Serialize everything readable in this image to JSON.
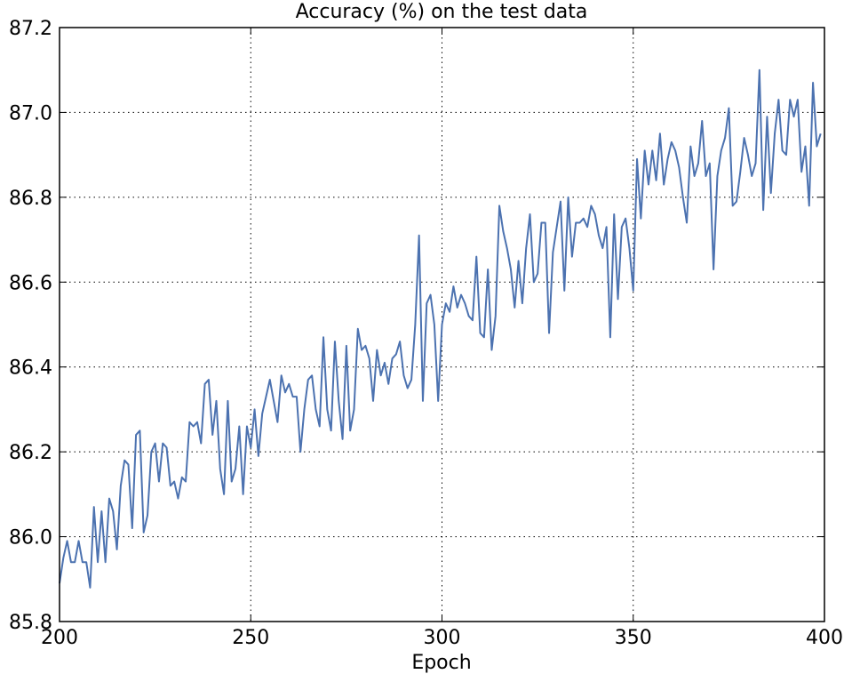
{
  "chart_data": {
    "type": "line",
    "title": "Accuracy (%) on the test data",
    "xlabel": "Epoch",
    "xlim": [
      200,
      400
    ],
    "xticks": [
      200,
      250,
      300,
      350,
      400
    ],
    "ylim": [
      85.8,
      87.2
    ],
    "yticks": [
      85.8,
      {
        "value": 86.0,
        "label": "86.0"
      },
      86.2,
      86.4,
      86.6,
      86.8,
      {
        "value": 87.0,
        "label": "87.0"
      },
      87.2
    ],
    "grid": true,
    "series": [
      {
        "name": "Accuracy",
        "color": "#4c72b0",
        "x": [
          200,
          201,
          202,
          203,
          204,
          205,
          206,
          207,
          208,
          209,
          210,
          211,
          212,
          213,
          214,
          215,
          216,
          217,
          218,
          219,
          220,
          221,
          222,
          223,
          224,
          225,
          226,
          227,
          228,
          229,
          230,
          231,
          232,
          233,
          234,
          235,
          236,
          237,
          238,
          239,
          240,
          241,
          242,
          243,
          244,
          245,
          246,
          247,
          248,
          249,
          250,
          251,
          252,
          253,
          254,
          255,
          256,
          257,
          258,
          259,
          260,
          261,
          262,
          263,
          264,
          265,
          266,
          267,
          268,
          269,
          270,
          271,
          272,
          273,
          274,
          275,
          276,
          277,
          278,
          279,
          280,
          281,
          282,
          283,
          284,
          285,
          286,
          287,
          288,
          289,
          290,
          291,
          292,
          293,
          294,
          295,
          296,
          297,
          298,
          299,
          300,
          301,
          302,
          303,
          304,
          305,
          306,
          307,
          308,
          309,
          310,
          311,
          312,
          313,
          314,
          315,
          316,
          317,
          318,
          319,
          320,
          321,
          322,
          323,
          324,
          325,
          326,
          327,
          328,
          329,
          330,
          331,
          332,
          333,
          334,
          335,
          336,
          337,
          338,
          339,
          340,
          341,
          342,
          343,
          344,
          345,
          346,
          347,
          348,
          349,
          350,
          351,
          352,
          353,
          354,
          355,
          356,
          357,
          358,
          359,
          360,
          361,
          362,
          363,
          364,
          365,
          366,
          367,
          368,
          369,
          370,
          371,
          372,
          373,
          374,
          375,
          376,
          377,
          378,
          379,
          380,
          381,
          382,
          383,
          384,
          385,
          386,
          387,
          388,
          389,
          390,
          391,
          392,
          393,
          394,
          395,
          396,
          397,
          398,
          399
        ],
        "values": [
          85.89,
          85.95,
          85.99,
          85.94,
          85.94,
          85.99,
          85.94,
          85.94,
          85.88,
          86.07,
          85.94,
          86.06,
          85.94,
          86.09,
          86.06,
          85.97,
          86.12,
          86.18,
          86.17,
          86.02,
          86.24,
          86.25,
          86.01,
          86.05,
          86.2,
          86.22,
          86.13,
          86.22,
          86.21,
          86.12,
          86.13,
          86.09,
          86.14,
          86.13,
          86.27,
          86.26,
          86.27,
          86.22,
          86.36,
          86.37,
          86.24,
          86.32,
          86.16,
          86.1,
          86.32,
          86.13,
          86.16,
          86.26,
          86.1,
          86.26,
          86.21,
          86.3,
          86.19,
          86.29,
          86.33,
          86.37,
          86.32,
          86.27,
          86.38,
          86.34,
          86.36,
          86.33,
          86.33,
          86.2,
          86.3,
          86.37,
          86.38,
          86.3,
          86.26,
          86.47,
          86.3,
          86.25,
          86.46,
          86.32,
          86.23,
          86.45,
          86.25,
          86.3,
          86.49,
          86.44,
          86.45,
          86.42,
          86.32,
          86.44,
          86.38,
          86.41,
          86.36,
          86.42,
          86.43,
          86.46,
          86.38,
          86.35,
          86.37,
          86.5,
          86.71,
          86.32,
          86.55,
          86.57,
          86.5,
          86.32,
          86.5,
          86.55,
          86.53,
          86.59,
          86.54,
          86.57,
          86.55,
          86.52,
          86.51,
          86.66,
          86.48,
          86.47,
          86.63,
          86.44,
          86.52,
          86.78,
          86.72,
          86.68,
          86.63,
          86.54,
          86.65,
          86.55,
          86.68,
          86.76,
          86.6,
          86.62,
          86.74,
          86.74,
          86.48,
          86.67,
          86.73,
          86.79,
          86.58,
          86.8,
          86.66,
          86.74,
          86.74,
          86.75,
          86.73,
          86.78,
          86.76,
          86.71,
          86.68,
          86.73,
          86.47,
          86.76,
          86.56,
          86.73,
          86.75,
          86.68,
          86.58,
          86.89,
          86.75,
          86.91,
          86.83,
          86.91,
          86.84,
          86.95,
          86.83,
          86.89,
          86.93,
          86.91,
          86.87,
          86.8,
          86.74,
          86.92,
          86.85,
          86.88,
          86.98,
          86.85,
          86.88,
          86.63,
          86.85,
          86.91,
          86.94,
          87.01,
          86.78,
          86.79,
          86.86,
          86.94,
          86.9,
          86.85,
          86.88,
          87.1,
          86.77,
          86.99,
          86.81,
          86.95,
          87.03,
          86.91,
          86.9,
          87.03,
          86.99,
          87.03,
          86.86,
          86.92,
          86.78,
          87.07,
          86.92,
          86.95
        ]
      }
    ]
  }
}
